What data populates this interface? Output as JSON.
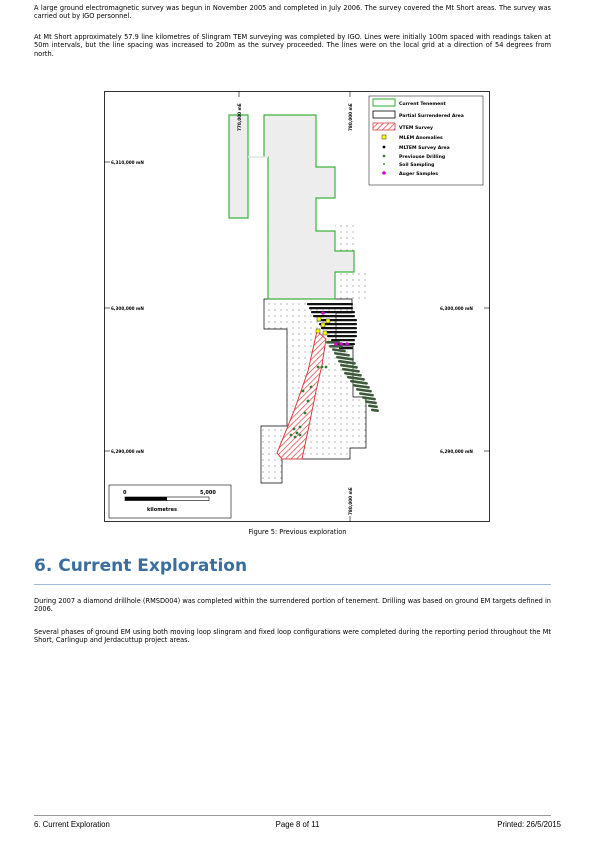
{
  "intro_paragraphs": [
    "A large ground electromagnetic survey was begun in November 2005 and completed in July 2006. The survey covered the Mt Short areas. The survey was carried out by IGO personnel.",
    "At Mt Short approximately 57.9 line kilometres of Slingram TEM surveying was completed by IGO. Lines were initially 100m spaced with readings taken at 50m intervals, but the line spacing was increased to 200m as the survey proceeded. The lines were on the local grid at a direction of 54 degrees from north."
  ],
  "figure": {
    "caption": "Figure 5: Previous exploration",
    "grid_labels": {
      "easting_770": "770,000 mE",
      "easting_780_top": "780,000 mE",
      "easting_780_bottom": "780,000 mE",
      "northing_6310": "6,310,000 mN",
      "northing_6300_left": "6,300,000 mN",
      "northing_6300_right": "6,300,000 mN",
      "northing_6290_left": "6,290,000 mN",
      "northing_6290_right": "6,290,000 mN"
    },
    "scale_bar": {
      "start": "0",
      "end": "5,000",
      "unit": "kilometres"
    },
    "legend": [
      {
        "label": "Current Tenement",
        "symbol": "green-outline-box"
      },
      {
        "label": "Partial Surrendered Area",
        "symbol": "black-outline-box"
      },
      {
        "label": "VTEM Survey",
        "symbol": "red-hatched-box"
      },
      {
        "label": "MLEM Anomalies",
        "symbol": "yellow-square"
      },
      {
        "label": "MLTEM Survey Area",
        "symbol": "black-dot"
      },
      {
        "label": "Previouse Drilling",
        "symbol": "green-dot"
      },
      {
        "label": "Soil Sampling",
        "symbol": "small-green-dot"
      },
      {
        "label": "Auger Samples",
        "symbol": "magenta-dot"
      }
    ],
    "colors": {
      "tenement": "#3cb43c",
      "vtem": "#d84040",
      "mlem": "#ffff00",
      "auger": "#cc00cc",
      "survey_line": "#3d5a3a"
    }
  },
  "section": {
    "number": "6.",
    "title": "Current Exploration"
  },
  "section_paragraphs": [
    "During 2007 a diamond drillhole (RMSD004) was completed within the surrendered portion of tenement. Drilling was based on ground EM targets defined in 2006.",
    "Several phases of ground EM using both moving loop slingram and fixed loop configurations were completed during the reporting period throughout the Mt Short, Carlingup and Jerdacuttup project areas."
  ],
  "footer": {
    "left": "6. Current Exploration",
    "center": "Page 8 of 11",
    "right": "Printed: 26/5/2015"
  }
}
